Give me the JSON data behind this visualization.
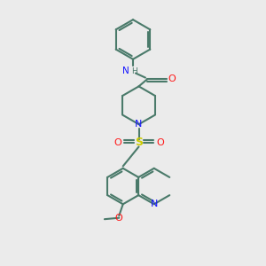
{
  "bg_color": "#ebebeb",
  "bond_color": "#4a7a6a",
  "n_color": "#1414ff",
  "o_color": "#ff1414",
  "s_color": "#cccc00",
  "lw": 1.5,
  "figsize": [
    3.0,
    3.0
  ],
  "dpi": 100,
  "xlim": [
    0,
    10
  ],
  "ylim": [
    0,
    10
  ]
}
